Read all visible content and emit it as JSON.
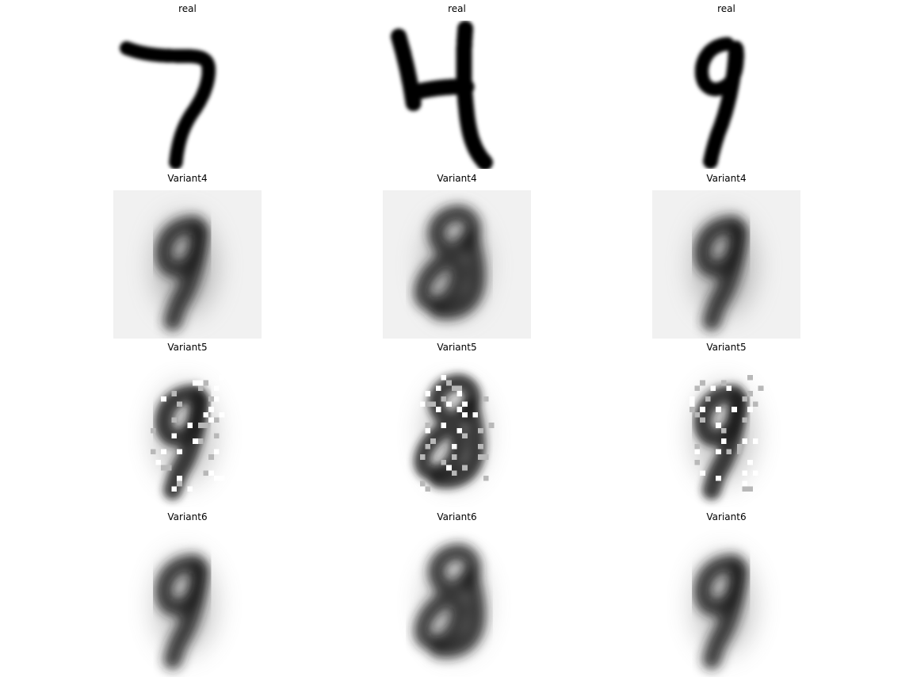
{
  "figure": {
    "panels": [
      {
        "title": "real",
        "digit": "7",
        "style": "real"
      },
      {
        "title": "real",
        "digit": "4",
        "style": "real"
      },
      {
        "title": "real",
        "digit": "9",
        "style": "real"
      },
      {
        "title": "Variant4",
        "digit": "9",
        "style": "blur-bg"
      },
      {
        "title": "Variant4",
        "digit": "8",
        "style": "blur-bg"
      },
      {
        "title": "Variant4",
        "digit": "9",
        "style": "blur-bg"
      },
      {
        "title": "Variant5",
        "digit": "9",
        "style": "speckle"
      },
      {
        "title": "Variant5",
        "digit": "8",
        "style": "speckle"
      },
      {
        "title": "Variant5",
        "digit": "9",
        "style": "speckle"
      },
      {
        "title": "Variant6",
        "digit": "9",
        "style": "blur"
      },
      {
        "title": "Variant6",
        "digit": "8",
        "style": "blur"
      },
      {
        "title": "Variant6",
        "digit": "9",
        "style": "blur"
      }
    ]
  }
}
